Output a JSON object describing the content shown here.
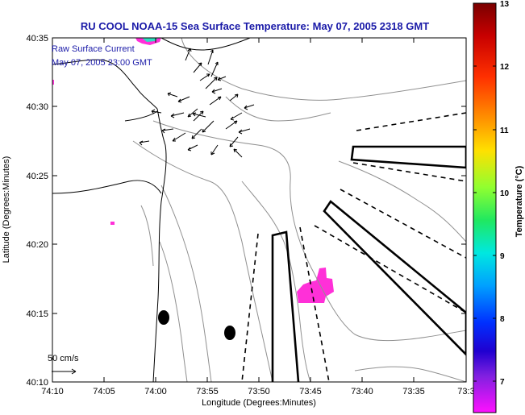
{
  "chart_data": {
    "type": "map",
    "title": "RU COOL  NOAA-15  Sea Surface Temperature:  May 07, 2005 2318 GMT",
    "xlabel": "Longitude (Degrees:Minutes)",
    "ylabel": "Latitude (Degrees:Minutes)",
    "x_ticks": [
      "74:10",
      "74:05",
      "74:00",
      "73:55",
      "73:50",
      "73:45",
      "73:40",
      "73:35",
      "73:3"
    ],
    "y_ticks": [
      "40:35",
      "40:30",
      "40:25",
      "40:20",
      "40:15",
      "40:10"
    ],
    "annotations": {
      "layer_name": "Raw Surface Current",
      "layer_time": "May 07, 2005 23:00 GMT",
      "scale_label": "50 cm/s"
    },
    "colorbar": {
      "label": "Temperature (°C)",
      "ticks": [
        "13",
        "12",
        "11",
        "10",
        "9",
        "8",
        "7"
      ],
      "range": [
        6.5,
        13
      ]
    }
  }
}
